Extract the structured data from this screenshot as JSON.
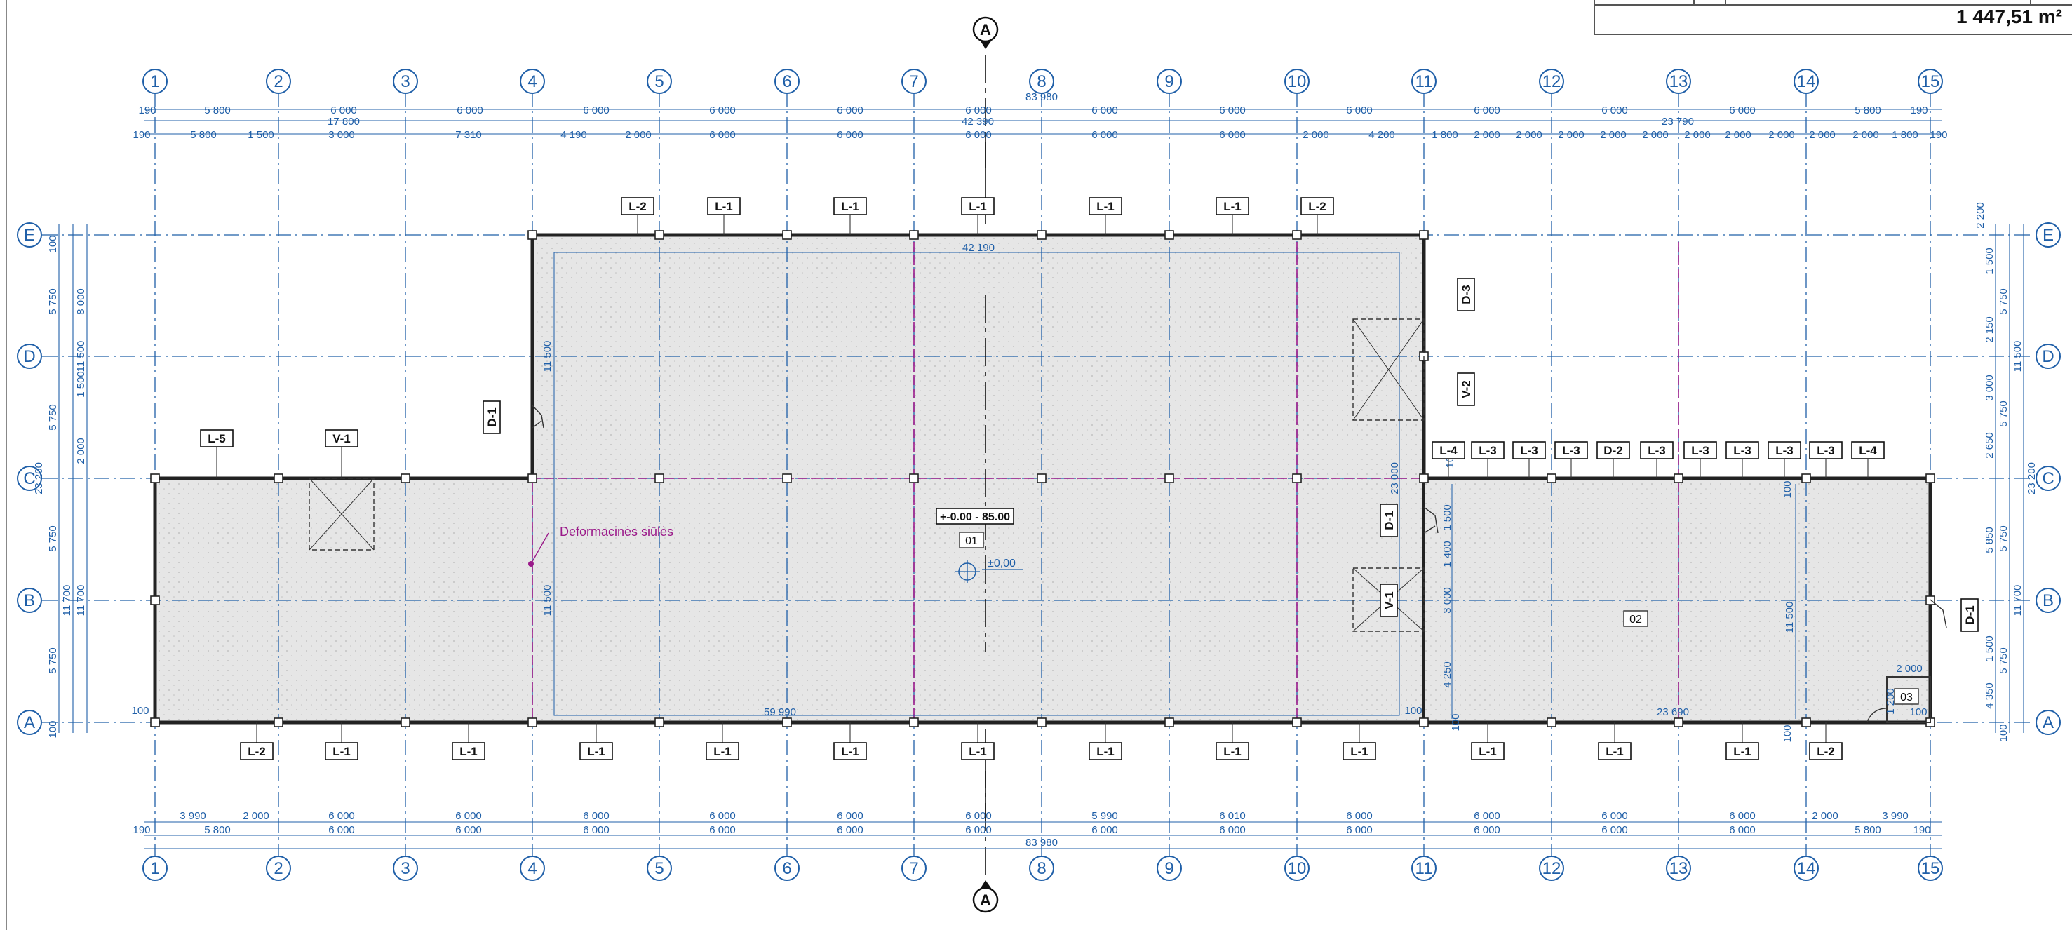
{
  "grid_columns": [
    "1",
    "2",
    "3",
    "4",
    "5",
    "6",
    "7",
    "8",
    "9",
    "10",
    "11",
    "12",
    "13",
    "14",
    "15"
  ],
  "grid_rows": [
    "E",
    "D",
    "C",
    "B",
    "A"
  ],
  "section_mark": "A",
  "summary": {
    "total_area": "1 447,51 m²"
  },
  "colors": {
    "grid": "#1f5fa8",
    "wall": "#222222",
    "slab_fill": "#e5e5e5",
    "deformation": "#9b1a8a",
    "dim": "#1f5fa8",
    "text": "#222222"
  },
  "dims_top_row1": [
    "190",
    "5 800",
    "6 000",
    "6 000",
    "6 000",
    "6 000",
    "6 000",
    "6 000",
    "6 000",
    "6 000",
    "6 000",
    "6 000",
    "6 000",
    "6 000",
    "5 800",
    "190"
  ],
  "dims_top_row2": [
    "83 980",
    "17 800",
    "42 390",
    "23 790"
  ],
  "dims_top_row3": [
    "190",
    "5 800",
    "1 500",
    "3 000",
    "7 310",
    "4 190",
    "2 000",
    "6 000",
    "6 000",
    "6 000",
    "6 000",
    "6 000",
    "2 000",
    "4 200",
    "1 800",
    "2 000",
    "2 000",
    "2 000",
    "2 000",
    "2 000",
    "2 000",
    "2 000",
    "2 000",
    "2 000",
    "2 000",
    "1 800",
    "190"
  ],
  "dims_bottom_row1": [
    "3 990",
    "2 000",
    "6 000",
    "6 000",
    "6 000",
    "6 000",
    "6 000",
    "6 000",
    "5 990",
    "6 010",
    "6 000",
    "6 000",
    "6 000",
    "6 000",
    "2 000",
    "3 990"
  ],
  "dims_bottom_row2": [
    "190",
    "5 800",
    "6 000",
    "6 000",
    "6 000",
    "6 000",
    "6 000",
    "6 000",
    "6 000",
    "6 000",
    "6 000",
    "6 000",
    "6 000",
    "6 000",
    "5 800",
    "190"
  ],
  "dims_bottom_total": "83 980",
  "dims_left": [
    "100",
    "5 750",
    "5 750",
    "2 000",
    "1 500",
    "5 750",
    "5 750",
    "100",
    "8 000",
    "11 500",
    "11 700",
    "11 700",
    "23 200"
  ],
  "dims_right": [
    "2 200",
    "1 500",
    "2 150",
    "3 000",
    "2 650",
    "5 850",
    "1 500",
    "4 350",
    "100",
    "5 750",
    "5 750",
    "5 750",
    "5 750",
    "11 500",
    "11 700",
    "23 200"
  ],
  "interior_dims": {
    "top_wall": "42 190",
    "bottom_left": "59 990",
    "bottom_right": "23 690",
    "vertical_left_upper": "11 500",
    "vertical_left_lower": "11 500",
    "vertical_mid": "23 000",
    "vertical_right": "11 500",
    "door_stack": [
      "1 500",
      "1 400",
      "3 000",
      "4 250"
    ],
    "small_2000": "2 000",
    "small_1": "100",
    "small_2": "100",
    "small_3": "100",
    "small_4": "100",
    "small_5": "100",
    "small_6": "1 200",
    "small_7": "100"
  },
  "tags_top": [
    "L-2",
    "L-1",
    "L-1",
    "L-1",
    "L-1",
    "L-1",
    "L-2"
  ],
  "tags_row_c_right": [
    "L-4",
    "L-3",
    "L-3",
    "L-3",
    "D-2",
    "L-3",
    "L-3",
    "L-3",
    "L-3",
    "L-3",
    "L-4"
  ],
  "tags_left": [
    "L-5",
    "V-1"
  ],
  "tags_bottom": [
    "L-2",
    "L-1",
    "L-1",
    "L-1",
    "L-1",
    "L-1",
    "L-1",
    "L-1",
    "L-1",
    "L-1",
    "L-1",
    "L-1",
    "L-1",
    "L-2"
  ],
  "tags_vertical": [
    "D-3",
    "V-2",
    "D-1",
    "D-1",
    "V-1",
    "D-1"
  ],
  "rooms": [
    "01",
    "02",
    "03"
  ],
  "level_label": "+-0.00 - 85.00",
  "level_mark": "±0,00",
  "deformation_label": "Deformacinės siūlės"
}
